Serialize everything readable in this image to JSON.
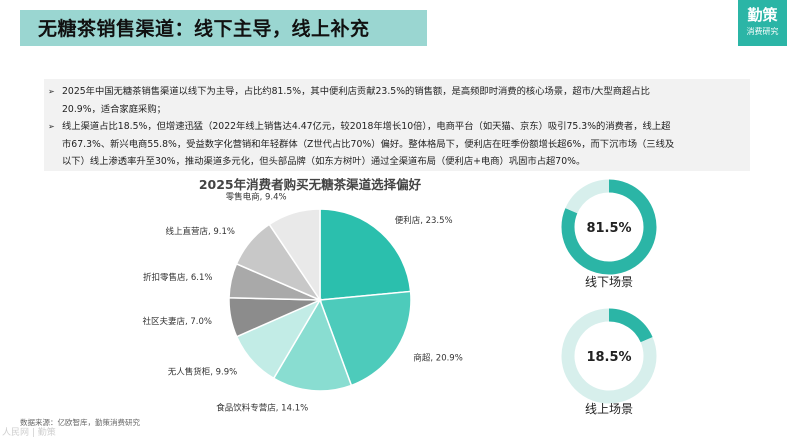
{
  "header": {
    "title": "无糖茶销售渠道：线下主导，线上补充",
    "brand_name": "勤策",
    "brand_sub": "消费研究"
  },
  "bullets": [
    {
      "mark": "➢",
      "lines": [
        "2025年中国无糖茶销售渠道以线下为主导，占比约81.5%，其中便利店贡献23.5%的销售额，是高频即时消费的核心场景，超市/大型商超占比",
        "20.9%，适合家庭采购；"
      ]
    },
    {
      "mark": "➢",
      "lines": [
        "线上渠道占比18.5%，但增速迅猛（2022年线上销售达4.47亿元，较2018年增长10倍），电商平台（如天猫、京东）吸引75.3%的消费者，线上超",
        "市67.3%、新兴电商55.8%，受益数字化营销和年轻群体（Z世代占比70%）偏好。整体格局下，便利店在旺季份额增长超6%，而下沉市场（三线及",
        "以下）线上渗透率升至30%，推动渠道多元化，但头部品牌（如东方树叶）通过全渠道布局（便利店+电商）巩固市占超70%。"
      ]
    }
  ],
  "chart_data": [
    {
      "type": "pie",
      "title": "2025年消费者购买无糖茶渠道选择偏好",
      "slices": [
        {
          "label": "便利店",
          "value": 23.5,
          "display": "便利店, 23.5%",
          "color": "#2bbfad"
        },
        {
          "label": "商超",
          "value": 20.9,
          "display": "商超, 20.9%",
          "color": "#4dcbbb"
        },
        {
          "label": "食品饮料专营店",
          "value": 14.1,
          "display": "食品饮料专营店, 14.1%",
          "color": "#89ddd1"
        },
        {
          "label": "无人售货柜",
          "value": 9.9,
          "display": "无人售货柜, 9.9%",
          "color": "#c2ece6"
        },
        {
          "label": "社区夫妻店",
          "value": 7.0,
          "display": "社区夫妻店, 7.0%",
          "color": "#8c8c8c"
        },
        {
          "label": "折扣零售店",
          "value": 6.1,
          "display": "折扣零售店, 6.1%",
          "color": "#a9a9a9"
        },
        {
          "label": "线上直营店",
          "value": 9.1,
          "display": "线上直营店, 9.1%",
          "color": "#c8c8c8"
        },
        {
          "label": "零售电商",
          "value": 9.4,
          "display": "零售电商, 9.4%",
          "color": "#e9e9e9"
        }
      ]
    },
    {
      "type": "pie",
      "title": "",
      "slices": [
        {
          "label": "线下场景",
          "value": 81.5,
          "display": "81.5%",
          "color": "#2bb5a6"
        },
        {
          "label": "",
          "value": 18.5,
          "display": "",
          "color": "#d7efec"
        }
      ]
    },
    {
      "type": "pie",
      "title": "",
      "slices": [
        {
          "label": "线上场景",
          "value": 18.5,
          "display": "18.5%",
          "color": "#2bb5a6"
        },
        {
          "label": "",
          "value": 81.5,
          "display": "",
          "color": "#d7efec"
        }
      ]
    }
  ],
  "donuts": [
    {
      "value_text": "81.5%",
      "caption": "线下场景"
    },
    {
      "value_text": "18.5%",
      "caption": "线上场景"
    }
  ],
  "footer": {
    "source": "数据来源：亿欧智库，勤策消费研究",
    "watermark": "人民网 | 勤策"
  }
}
